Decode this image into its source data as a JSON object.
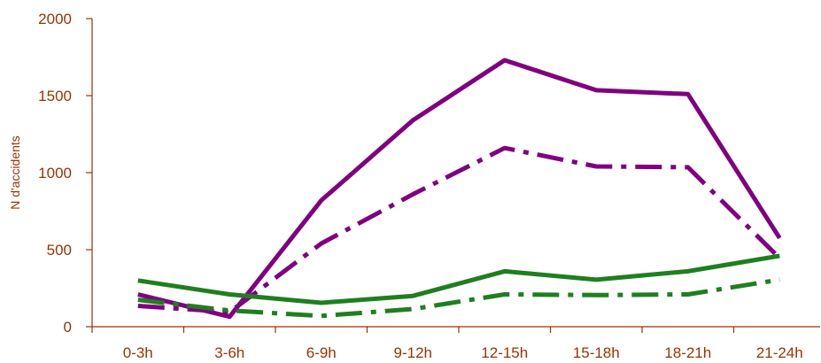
{
  "colors": {
    "axis": "#993300",
    "text": "#993300",
    "purple": "#800080",
    "green": "#1f7f1f"
  },
  "chart_data": {
    "type": "line",
    "title": "",
    "xlabel": "",
    "ylabel": "N d'accidents",
    "categories": [
      "0-3h",
      "3-6h",
      "6-9h",
      "9-12h",
      "12-15h",
      "15-18h",
      "18-21h",
      "21-24h"
    ],
    "ylim": [
      0,
      2000
    ],
    "yticks": [
      0,
      500,
      1000,
      1500,
      2000
    ],
    "ytick_labels": [
      "0",
      "500",
      "1000",
      "1500",
      "2000"
    ],
    "grid": false,
    "legend": "none",
    "series": [
      {
        "values": [
          210,
          65,
          820,
          1340,
          1730,
          1535,
          1510,
          575
        ],
        "color": "#800080",
        "style": "solid"
      },
      {
        "values": [
          135,
          95,
          540,
          860,
          1160,
          1040,
          1035,
          445
        ],
        "color": "#800080",
        "style": "dashdot"
      },
      {
        "values": [
          300,
          210,
          155,
          200,
          360,
          305,
          360,
          460
        ],
        "color": "#1f7f1f",
        "style": "solid"
      },
      {
        "values": [
          175,
          105,
          70,
          115,
          210,
          205,
          210,
          305
        ],
        "color": "#1f7f1f",
        "style": "dashdot"
      }
    ]
  }
}
